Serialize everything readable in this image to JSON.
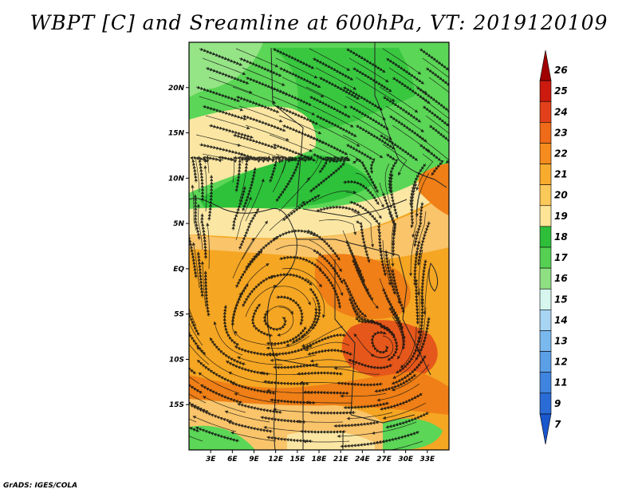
{
  "title": "WBPT [C] and Sreamline at 600hPa, VT: 2019120109",
  "credit": "GrADS: IGES/COLA",
  "map": {
    "variable": "WBPT",
    "level": "600hPa",
    "valid_time": "2019120109",
    "lon_range": [
      0,
      36
    ],
    "lat_range": [
      -20,
      25
    ],
    "lon_ticks": [
      "3E",
      "6E",
      "9E",
      "12E",
      "15E",
      "18E",
      "21E",
      "24E",
      "27E",
      "30E",
      "33E"
    ],
    "lat_ticks": [
      "20N",
      "15N",
      "10N",
      "5N",
      "EQ",
      "5S",
      "10S",
      "15S"
    ],
    "colors": {
      "green_dark": "#2ec23a",
      "green_mid": "#5bd656",
      "green_light": "#9be68c",
      "yellow": "#fbe7a3",
      "orange_light": "#f9c46a",
      "orange": "#f5a623",
      "orange_dark": "#ef7f16",
      "red_orange": "#e5571a"
    }
  },
  "colorbar": {
    "labels": [
      "26",
      "25",
      "24",
      "23",
      "22",
      "21",
      "20",
      "19",
      "18",
      "17",
      "16",
      "15",
      "14",
      "13",
      "12",
      "11",
      "9",
      "7"
    ],
    "colors": [
      "#a00000",
      "#cc1a0f",
      "#e2401a",
      "#ef6a19",
      "#f58c1d",
      "#f8ac2e",
      "#fbc85a",
      "#fde497",
      "#2fbe3a",
      "#55d052",
      "#8ee082",
      "#d6f6ee",
      "#a8d5f3",
      "#7ab9ee",
      "#5b9fe7",
      "#3f84de",
      "#2a6bd6",
      "#1a56cc"
    ]
  }
}
